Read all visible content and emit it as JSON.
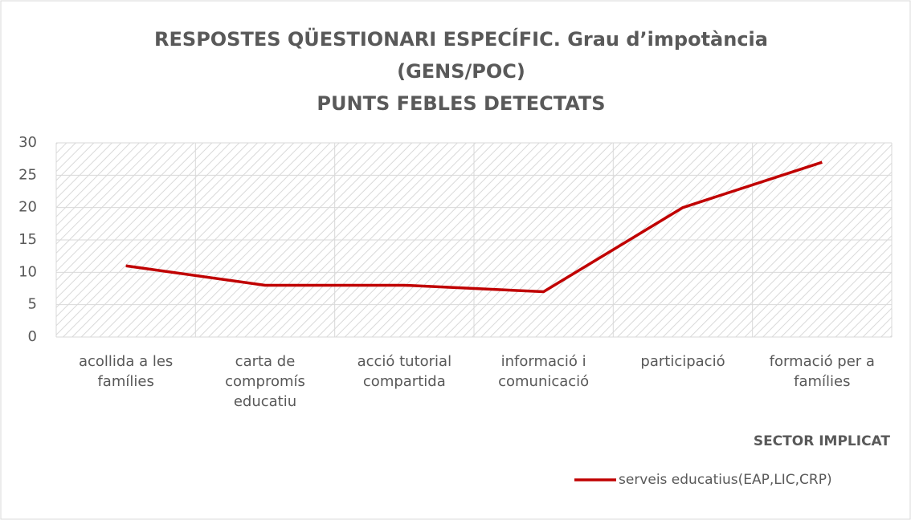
{
  "chart_data": {
    "type": "line",
    "title": [
      "RESPOSTES QÜESTIONARI ESPECÍFIC. Grau d’impotància",
      "(GENS/POC)",
      "PUNTS FEBLES DETECTATS"
    ],
    "x_label": "SECTOR IMPLICAT",
    "categories": [
      "acollida a les famílies",
      "carta de compromís educatiu",
      "acció tutorial compartida",
      "informació i comunicació",
      "participació",
      "formació per a famílies"
    ],
    "series": [
      {
        "name": "serveis educatius(EAP,LIC,CRP)",
        "color": "#c00000",
        "values": [
          11,
          8,
          8,
          7,
          20,
          27
        ]
      }
    ],
    "ylim": [
      0,
      30
    ],
    "yticks": [
      0,
      5,
      10,
      15,
      20,
      25,
      30
    ],
    "grid": true,
    "legend": "bottom-right"
  }
}
